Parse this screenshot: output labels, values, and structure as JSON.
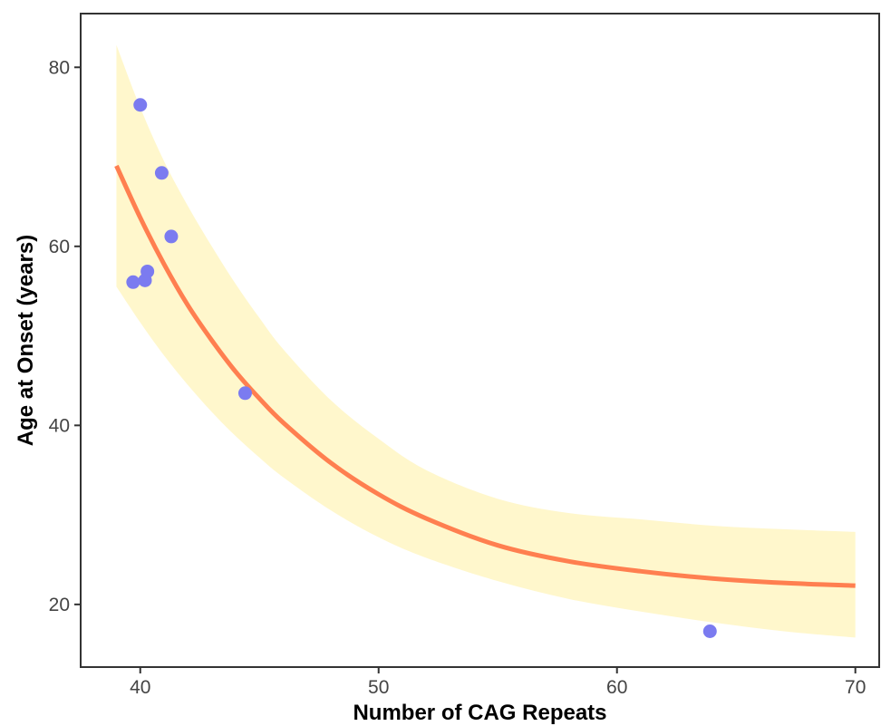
{
  "chart_data": {
    "type": "scatter",
    "title": "",
    "xlabel": "Number of CAG Repeats",
    "ylabel": "Age at Onset (years)",
    "xlim": [
      37.5,
      71
    ],
    "ylim": [
      13,
      86
    ],
    "x_ticks": [
      40,
      50,
      60,
      70
    ],
    "y_ticks": [
      20,
      40,
      60,
      80
    ],
    "grid": false,
    "legend": "none",
    "colors": {
      "points": "#7b7bf0",
      "fit_line": "#ff7f50",
      "band": "#fff7cc",
      "frame": "#333333"
    },
    "points": [
      {
        "x": 39.7,
        "y": 56.0
      },
      {
        "x": 40.0,
        "y": 75.8
      },
      {
        "x": 40.2,
        "y": 56.2
      },
      {
        "x": 40.3,
        "y": 57.2
      },
      {
        "x": 40.9,
        "y": 68.2
      },
      {
        "x": 41.3,
        "y": 61.1
      },
      {
        "x": 44.4,
        "y": 43.6
      },
      {
        "x": 63.9,
        "y": 17.0
      }
    ],
    "fit": {
      "x": [
        39,
        40,
        41,
        42,
        43,
        44,
        45,
        46,
        48,
        50,
        52,
        55,
        58,
        61,
        64,
        67,
        70
      ],
      "y": [
        69.0,
        63.2,
        58.0,
        53.4,
        49.5,
        46.0,
        43.0,
        40.3,
        35.8,
        32.3,
        29.6,
        26.6,
        24.8,
        23.7,
        22.9,
        22.4,
        22.1
      ],
      "lower": [
        55.5,
        51.5,
        47.8,
        44.5,
        41.5,
        38.8,
        36.4,
        34.2,
        30.5,
        27.5,
        25.2,
        22.6,
        20.6,
        19.2,
        18.0,
        17.0,
        16.3
      ],
      "upper": [
        82.5,
        75.5,
        69.5,
        64.5,
        60.0,
        55.8,
        52.0,
        48.5,
        42.8,
        38.5,
        35.0,
        31.8,
        30.2,
        29.5,
        28.8,
        28.4,
        28.1
      ]
    }
  }
}
